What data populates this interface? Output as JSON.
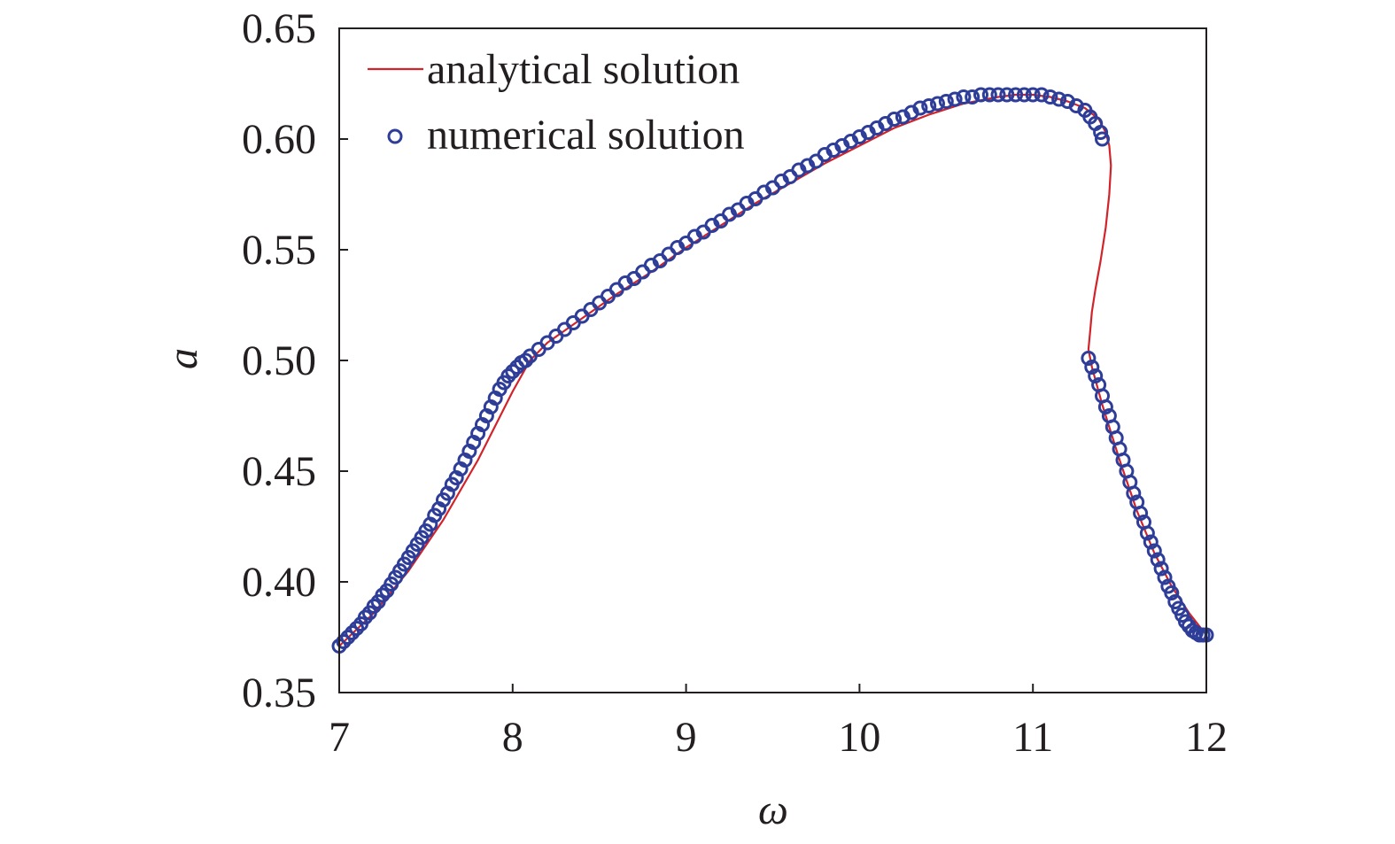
{
  "chart_data": {
    "type": "line",
    "title": "",
    "xlabel": "ω",
    "ylabel": "a",
    "xlim": [
      7,
      12
    ],
    "ylim": [
      0.35,
      0.65
    ],
    "xticks": [
      7,
      8,
      9,
      10,
      11,
      12
    ],
    "xtick_labels": [
      "7",
      "8",
      "9",
      "10",
      "11",
      "12"
    ],
    "yticks": [
      0.35,
      0.4,
      0.45,
      0.5,
      0.55,
      0.6,
      0.65
    ],
    "ytick_labels": [
      "0.35",
      "0.40",
      "0.45",
      "0.50",
      "0.55",
      "0.60",
      "0.65"
    ],
    "grid": false,
    "legend_position": "top-left",
    "colors": {
      "analytical": "#d2232a",
      "numerical": "#2e3d98",
      "axis": "#231f20"
    },
    "series": [
      {
        "name": "analytical solution",
        "style": "line",
        "x": [
          7.0,
          7.2,
          7.4,
          7.6,
          7.8,
          8.0,
          8.05,
          8.1,
          8.2,
          8.4,
          8.6,
          8.8,
          9.0,
          9.2,
          9.4,
          9.6,
          9.8,
          10.0,
          10.2,
          10.4,
          10.6,
          10.8,
          10.9,
          11.0,
          11.1,
          11.2,
          11.3,
          11.38,
          11.42,
          11.44,
          11.45,
          11.44,
          11.42,
          11.39,
          11.36,
          11.34,
          11.33,
          11.32,
          11.34,
          11.4,
          11.5,
          11.6,
          11.7,
          11.8,
          11.9,
          12.0
        ],
        "y": [
          0.371,
          0.386,
          0.405,
          0.428,
          0.455,
          0.486,
          0.493,
          0.5,
          0.508,
          0.519,
          0.53,
          0.54,
          0.551,
          0.561,
          0.571,
          0.58,
          0.589,
          0.597,
          0.605,
          0.611,
          0.616,
          0.619,
          0.62,
          0.62,
          0.619,
          0.617,
          0.614,
          0.609,
          0.603,
          0.597,
          0.588,
          0.575,
          0.56,
          0.545,
          0.532,
          0.522,
          0.513,
          0.505,
          0.497,
          0.48,
          0.455,
          0.432,
          0.413,
          0.398,
          0.386,
          0.376
        ]
      },
      {
        "name": "numerical solution",
        "style": "markers",
        "x": [
          7.0,
          7.025,
          7.05,
          7.075,
          7.1,
          7.125,
          7.15,
          7.175,
          7.2,
          7.225,
          7.25,
          7.275,
          7.3,
          7.325,
          7.35,
          7.375,
          7.4,
          7.425,
          7.45,
          7.475,
          7.5,
          7.525,
          7.55,
          7.575,
          7.6,
          7.625,
          7.65,
          7.675,
          7.7,
          7.725,
          7.75,
          7.775,
          7.8,
          7.825,
          7.85,
          7.875,
          7.9,
          7.925,
          7.95,
          7.975,
          8.0,
          8.025,
          8.05,
          8.075,
          8.1,
          8.15,
          8.2,
          8.25,
          8.3,
          8.35,
          8.4,
          8.45,
          8.5,
          8.55,
          8.6,
          8.65,
          8.7,
          8.75,
          8.8,
          8.85,
          8.9,
          8.95,
          9.0,
          9.05,
          9.1,
          9.15,
          9.2,
          9.25,
          9.3,
          9.35,
          9.4,
          9.45,
          9.5,
          9.55,
          9.6,
          9.65,
          9.7,
          9.75,
          9.8,
          9.85,
          9.9,
          9.95,
          10.0,
          10.05,
          10.1,
          10.15,
          10.2,
          10.25,
          10.3,
          10.35,
          10.4,
          10.45,
          10.5,
          10.55,
          10.6,
          10.65,
          10.7,
          10.75,
          10.8,
          10.85,
          10.9,
          10.95,
          11.0,
          11.05,
          11.1,
          11.15,
          11.2,
          11.25,
          11.3,
          11.33,
          11.36,
          11.39,
          11.4,
          11.32,
          11.34,
          11.36,
          11.38,
          11.4,
          11.42,
          11.44,
          11.46,
          11.48,
          11.5,
          11.52,
          11.54,
          11.56,
          11.58,
          11.6,
          11.62,
          11.64,
          11.66,
          11.68,
          11.7,
          11.72,
          11.74,
          11.76,
          11.78,
          11.8,
          11.82,
          11.84,
          11.86,
          11.88,
          11.9,
          11.92,
          11.94,
          11.96,
          11.98,
          12.0
        ],
        "y": [
          0.371,
          0.373,
          0.375,
          0.377,
          0.379,
          0.381,
          0.384,
          0.386,
          0.389,
          0.391,
          0.394,
          0.396,
          0.399,
          0.402,
          0.405,
          0.408,
          0.411,
          0.414,
          0.417,
          0.42,
          0.423,
          0.426,
          0.43,
          0.433,
          0.437,
          0.44,
          0.444,
          0.447,
          0.451,
          0.455,
          0.459,
          0.463,
          0.467,
          0.471,
          0.475,
          0.479,
          0.483,
          0.487,
          0.49,
          0.493,
          0.495,
          0.497,
          0.499,
          0.5,
          0.502,
          0.505,
          0.508,
          0.511,
          0.514,
          0.517,
          0.52,
          0.523,
          0.526,
          0.529,
          0.532,
          0.535,
          0.537,
          0.54,
          0.543,
          0.545,
          0.548,
          0.551,
          0.553,
          0.556,
          0.558,
          0.561,
          0.563,
          0.566,
          0.568,
          0.571,
          0.573,
          0.576,
          0.578,
          0.581,
          0.583,
          0.586,
          0.588,
          0.59,
          0.593,
          0.595,
          0.597,
          0.599,
          0.601,
          0.603,
          0.605,
          0.607,
          0.609,
          0.61,
          0.612,
          0.614,
          0.615,
          0.616,
          0.617,
          0.618,
          0.619,
          0.619,
          0.62,
          0.62,
          0.62,
          0.62,
          0.62,
          0.62,
          0.62,
          0.62,
          0.619,
          0.618,
          0.617,
          0.615,
          0.613,
          0.61,
          0.607,
          0.603,
          0.6,
          0.501,
          0.497,
          0.493,
          0.489,
          0.484,
          0.479,
          0.475,
          0.47,
          0.465,
          0.46,
          0.455,
          0.45,
          0.445,
          0.44,
          0.436,
          0.431,
          0.427,
          0.422,
          0.418,
          0.414,
          0.41,
          0.406,
          0.402,
          0.398,
          0.395,
          0.391,
          0.388,
          0.385,
          0.382,
          0.38,
          0.378,
          0.377,
          0.376,
          0.376,
          0.376
        ]
      }
    ]
  }
}
